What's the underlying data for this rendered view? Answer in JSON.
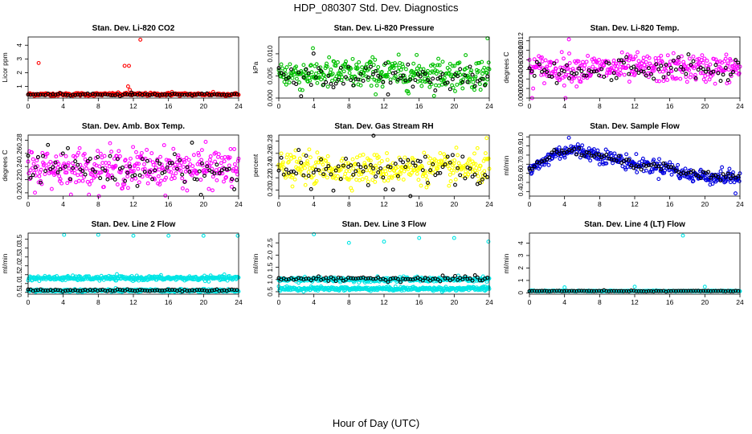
{
  "page": {
    "title": "HDP_080307  Std. Dev. Diagnostics",
    "xlabel": "Hour of Day (UTC)"
  },
  "chart_data": [
    {
      "type": "scatter",
      "title": "Stan. Dev. Li-820 CO2",
      "ylabel": "Licor ppm",
      "xlim": [
        0,
        24
      ],
      "ylim": [
        0.15,
        4.6
      ],
      "x_ticks": [
        0,
        4,
        8,
        12,
        16,
        20,
        24
      ],
      "y_ticks": [
        1,
        2,
        3,
        4
      ],
      "y_tick_labels": [
        "1",
        "2",
        "3",
        "4"
      ],
      "series": [
        {
          "color": "#ff0000",
          "baseline": 0.42,
          "spread": 0.07,
          "outliers": [
            [
              1.2,
              2.7
            ],
            [
              11.0,
              2.5
            ],
            [
              11.5,
              2.5
            ],
            [
              11.4,
              1.0
            ],
            [
              11.6,
              0.75
            ],
            [
              12.8,
              4.4
            ],
            [
              16.4,
              0.6
            ],
            [
              21.1,
              0.6
            ]
          ]
        },
        {
          "color": "#000000",
          "baseline": 0.4,
          "spread": 0.05,
          "outliers": [
            [
              11.8,
              0.55
            ]
          ]
        }
      ]
    },
    {
      "type": "scatter",
      "title": "Stan. Dev. Li-820 Pressure",
      "ylabel": "kPa",
      "xlim": [
        0,
        24
      ],
      "ylim": [
        0.0,
        0.0138
      ],
      "x_ticks": [
        0,
        4,
        8,
        12,
        16,
        20,
        24
      ],
      "y_ticks": [
        0.0,
        0.005,
        0.01
      ],
      "y_tick_labels": [
        "0.000",
        "0.005",
        "0.010"
      ],
      "series": [
        {
          "color": "#00c000",
          "baseline": 0.0055,
          "spread": 0.0022,
          "outliers": [
            [
              23.8,
              0.0135
            ]
          ]
        },
        {
          "color": "#000000",
          "baseline": 0.0045,
          "spread": 0.0022,
          "outliers": []
        }
      ]
    },
    {
      "type": "scatter",
      "title": "Stan. Dev. Li-820 Temp.",
      "ylabel": "degrees C",
      "xlim": [
        0,
        24
      ],
      "ylim": [
        0.0,
        0.0128
      ],
      "x_ticks": [
        0,
        4,
        8,
        12,
        16,
        20,
        24
      ],
      "y_ticks": [
        0.0,
        0.002,
        0.004,
        0.006,
        0.008,
        0.01,
        0.012
      ],
      "y_tick_labels": [
        "0.000",
        "0.002",
        "0.004",
        "0.006",
        "0.008",
        "0.010",
        "0.012"
      ],
      "series": [
        {
          "color": "#ff00ff",
          "baseline": 0.0062,
          "spread": 0.0018,
          "outliers": [
            [
              0.3,
              0.0
            ],
            [
              4.1,
              0.0
            ],
            [
              4.5,
              0.0123
            ]
          ]
        },
        {
          "color": "#000000",
          "baseline": 0.0058,
          "spread": 0.0016,
          "outliers": []
        }
      ]
    },
    {
      "type": "scatter",
      "title": "Stan. Dev. Amb. Box Temp.",
      "ylabel": "degrees C",
      "xlim": [
        0,
        24
      ],
      "ylim": [
        0.195,
        0.288
      ],
      "x_ticks": [
        0,
        4,
        8,
        12,
        16,
        20,
        24
      ],
      "y_ticks": [
        0.2,
        0.22,
        0.24,
        0.26,
        0.28
      ],
      "y_tick_labels": [
        "0.20",
        "0.22",
        "0.24",
        "0.26",
        "0.28"
      ],
      "series": [
        {
          "color": "#ff00ff",
          "baseline": 0.238,
          "spread": 0.018,
          "outliers": []
        },
        {
          "color": "#000000",
          "baseline": 0.236,
          "spread": 0.017,
          "outliers": [
            [
              19.7,
              0.197
            ]
          ]
        }
      ]
    },
    {
      "type": "scatter",
      "title": "Stan. Dev. Gas Stream RH",
      "ylabel": "percent",
      "xlim": [
        0,
        24
      ],
      "ylim": [
        0.19,
        0.29
      ],
      "x_ticks": [
        0,
        4,
        8,
        12,
        16,
        20,
        24
      ],
      "y_ticks": [
        0.2,
        0.22,
        0.24,
        0.26,
        0.28
      ],
      "y_tick_labels": [
        "0.20",
        "0.22",
        "0.24",
        "0.26",
        "0.28"
      ],
      "series": [
        {
          "color": "#ffff00",
          "baseline": 0.235,
          "spread": 0.015,
          "outliers": [
            [
              23.7,
              0.285
            ]
          ]
        },
        {
          "color": "#000000",
          "baseline": 0.232,
          "spread": 0.016,
          "outliers": [
            [
              10.8,
              0.289
            ]
          ]
        }
      ]
    },
    {
      "type": "scatter",
      "title": "Stan. Dev. Sample Flow",
      "ylabel": "ml/min",
      "xlim": [
        0,
        24
      ],
      "ylim": [
        0.35,
        1.02
      ],
      "x_ticks": [
        0,
        4,
        8,
        12,
        16,
        20,
        24
      ],
      "y_ticks": [
        0.4,
        0.5,
        0.6,
        0.7,
        0.8,
        0.9,
        1.0
      ],
      "y_tick_labels": [
        "0.4",
        "0.5",
        "0.6",
        "0.7",
        "0.8",
        "0.9",
        "1.0"
      ],
      "series": [
        {
          "color": "#0000e0",
          "profile": [
            [
              0,
              0.62
            ],
            [
              3,
              0.82
            ],
            [
              5,
              0.86
            ],
            [
              8,
              0.8
            ],
            [
              12,
              0.7
            ],
            [
              16,
              0.66
            ],
            [
              18,
              0.58
            ],
            [
              21,
              0.56
            ],
            [
              24,
              0.55
            ]
          ],
          "spread": 0.05,
          "outliers": [
            [
              4.5,
              0.99
            ],
            [
              23.5,
              0.38
            ]
          ]
        },
        {
          "color": "#000000",
          "profile": [
            [
              0,
              0.64
            ],
            [
              3,
              0.83
            ],
            [
              5,
              0.85
            ],
            [
              8,
              0.79
            ],
            [
              12,
              0.7
            ],
            [
              16,
              0.66
            ],
            [
              18,
              0.6
            ],
            [
              21,
              0.57
            ],
            [
              24,
              0.56
            ]
          ],
          "spread": 0.03,
          "outliers": []
        }
      ]
    },
    {
      "type": "scatter",
      "title": "Stan. Dev. Line 2 Flow",
      "ylabel": "ml/min",
      "xlim": [
        0,
        24
      ],
      "ylim": [
        0.4,
        3.85
      ],
      "x_ticks": [
        0,
        4,
        8,
        12,
        16,
        20,
        24
      ],
      "y_ticks": [
        0.5,
        1.0,
        1.5,
        2.0,
        2.5,
        3.0,
        3.5
      ],
      "y_tick_labels": [
        "0.5",
        "1.0",
        "1.5",
        "2.0",
        "2.5",
        "3.0",
        "3.5"
      ],
      "series": [
        {
          "color": "#00e5e5",
          "baseline": 1.3,
          "spread": 0.08,
          "outliers": [
            [
              4.1,
              3.75
            ],
            [
              8.0,
              3.75
            ],
            [
              12.0,
              3.7
            ],
            [
              16.0,
              3.7
            ],
            [
              20.0,
              3.7
            ],
            [
              23.9,
              3.7
            ]
          ]
        },
        {
          "color": "#00e5e5",
          "baseline": 0.6,
          "spread": 0.05,
          "outliers": []
        },
        {
          "color": "#000000",
          "baseline": 0.62,
          "spread": 0.04,
          "outliers": []
        }
      ]
    },
    {
      "type": "scatter",
      "title": "Stan. Dev. Line 3 Flow",
      "ylabel": "ml/min",
      "xlim": [
        0,
        24
      ],
      "ylim": [
        0.4,
        2.9
      ],
      "x_ticks": [
        0,
        4,
        8,
        12,
        16,
        20,
        24
      ],
      "y_ticks": [
        0.5,
        1.0,
        1.5,
        2.0,
        2.5
      ],
      "y_tick_labels": [
        "0.5",
        "1.0",
        "1.5",
        "2.0",
        "2.5"
      ],
      "series": [
        {
          "color": "#00e5e5",
          "baseline": 0.62,
          "spread": 0.05,
          "outliers": [
            [
              4.0,
              2.85
            ],
            [
              8.0,
              2.5
            ],
            [
              12.0,
              2.55
            ],
            [
              16.0,
              2.7
            ],
            [
              20.0,
              2.7
            ],
            [
              23.9,
              2.55
            ]
          ]
        },
        {
          "color": "#00e5e5",
          "baseline": 1.0,
          "spread": 0.06,
          "outliers": []
        },
        {
          "color": "#000000",
          "baseline": 1.02,
          "spread": 0.06,
          "outliers": []
        }
      ]
    },
    {
      "type": "scatter",
      "title": "Stan. Dev. Line 4 (LT) Flow",
      "ylabel": "ml/min",
      "xlim": [
        0,
        24
      ],
      "ylim": [
        -0.1,
        4.8
      ],
      "x_ticks": [
        0,
        4,
        8,
        12,
        16,
        20,
        24
      ],
      "y_ticks": [
        0,
        1,
        2,
        3,
        4
      ],
      "y_tick_labels": [
        "0",
        "1",
        "2",
        "3",
        "4"
      ],
      "series": [
        {
          "color": "#00e5e5",
          "baseline": 0.15,
          "spread": 0.02,
          "outliers": [
            [
              0.2,
              0.2
            ],
            [
              4.0,
              0.45
            ],
            [
              12.0,
              0.5
            ],
            [
              17.5,
              4.6
            ],
            [
              20.0,
              0.5
            ]
          ]
        },
        {
          "color": "#000000",
          "baseline": 0.15,
          "spread": 0.02,
          "outliers": []
        }
      ]
    }
  ]
}
